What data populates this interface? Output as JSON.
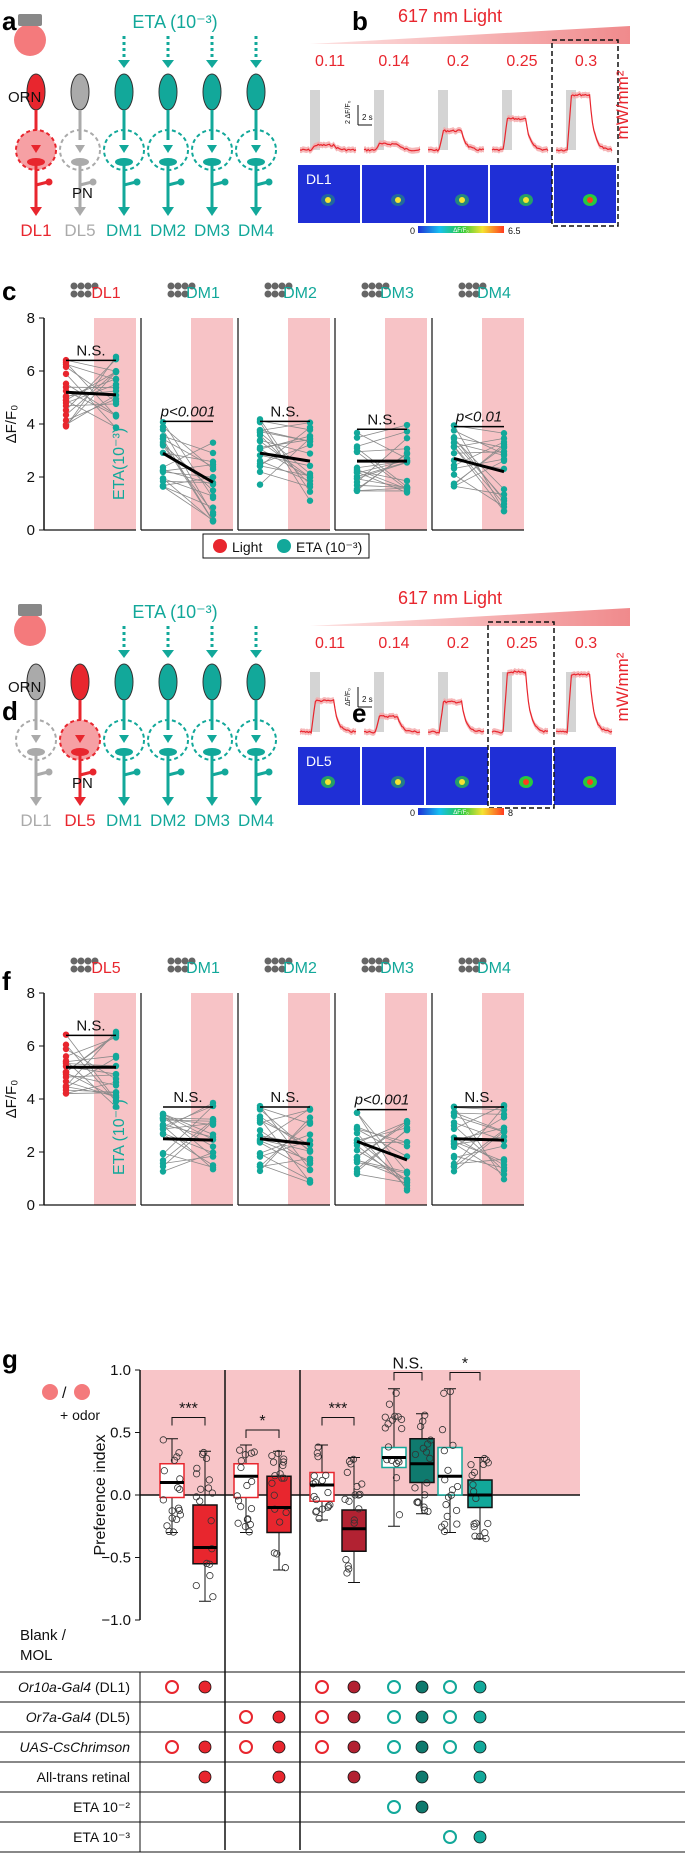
{
  "panels": {
    "a": {
      "label": "a",
      "eta": "ETA (10⁻³)",
      "orn": "ORN",
      "pn": "PN",
      "glomeruli": [
        "DL1",
        "DL5",
        "DM1",
        "DM2",
        "DM3",
        "DM4"
      ],
      "glom_colors": [
        "#e8262e",
        "#aaaaaa",
        "#12a89a",
        "#12a89a",
        "#12a89a",
        "#12a89a"
      ]
    },
    "b": {
      "label": "b",
      "light": "617 nm Light",
      "intensities": [
        "0.11",
        "0.14",
        "0.2",
        "0.25",
        "0.3"
      ],
      "unit": "mW/mm²",
      "scale": "2 ΔF/F₀",
      "time": "2 s",
      "image_label": "DL1",
      "cbar_min": "0",
      "cbar_mid": "ΔF/F₀",
      "cbar_max": "6.5",
      "peak_dff": [
        0.4,
        0.5,
        1.6,
        2.6,
        4.6
      ]
    },
    "c": {
      "label": "c",
      "ylabel": "ΔF/F₀",
      "ticks": [
        "0",
        "2",
        "4",
        "6",
        "8"
      ],
      "eta_label": "ETA(10⁻³)",
      "legend_light": "Light",
      "legend_eta": "ETA (10⁻³)",
      "subpanels": [
        {
          "glom": "DL1",
          "stat": "N.S.",
          "left_mean": 5.2,
          "right_mean": 5.1,
          "color": "#e8262e"
        },
        {
          "glom": "DM1",
          "stat": "p<0.001",
          "left_mean": 2.9,
          "right_mean": 1.8,
          "color": "#12a89a"
        },
        {
          "glom": "DM2",
          "stat": "N.S.",
          "left_mean": 2.9,
          "right_mean": 2.6,
          "color": "#12a89a"
        },
        {
          "glom": "DM3",
          "stat": "N.S.",
          "left_mean": 2.6,
          "right_mean": 2.6,
          "color": "#12a89a"
        },
        {
          "glom": "DM4",
          "stat": "p<0.01",
          "left_mean": 2.7,
          "right_mean": 2.2,
          "color": "#12a89a"
        }
      ]
    },
    "d": {
      "label": "d",
      "eta": "ETA (10⁻³)",
      "orn": "ORN",
      "pn": "PN",
      "glomeruli": [
        "DL1",
        "DL5",
        "DM1",
        "DM2",
        "DM3",
        "DM4"
      ],
      "glom_colors": [
        "#aaaaaa",
        "#e8262e",
        "#12a89a",
        "#12a89a",
        "#12a89a",
        "#12a89a"
      ]
    },
    "e": {
      "label": "e",
      "light": "617 nm Light",
      "intensities": [
        "0.11",
        "0.14",
        "0.2",
        "0.25",
        "0.3"
      ],
      "unit": "mW/mm²",
      "scale": "ΔF/F₀",
      "time": "2 s",
      "image_label": "DL5",
      "cbar_min": "0",
      "cbar_mid": "ΔF/F₀",
      "cbar_max": "8",
      "peak_dff": [
        2.6,
        1.3,
        2.5,
        5.0,
        4.8
      ]
    },
    "f": {
      "label": "f",
      "ylabel": "ΔF/F₀",
      "ticks": [
        "0",
        "2",
        "4",
        "6",
        "8"
      ],
      "eta_label": "ETA (10⁻³)",
      "subpanels": [
        {
          "glom": "DL5",
          "stat": "N.S.",
          "left_mean": 5.2,
          "right_mean": 5.2,
          "color": "#e8262e"
        },
        {
          "glom": "DM1",
          "stat": "N.S.",
          "left_mean": 2.5,
          "right_mean": 2.45,
          "color": "#12a89a"
        },
        {
          "glom": "DM2",
          "stat": "N.S.",
          "left_mean": 2.5,
          "right_mean": 2.3,
          "color": "#12a89a"
        },
        {
          "glom": "DM3",
          "stat": "p<0.001",
          "left_mean": 2.4,
          "right_mean": 1.7,
          "color": "#12a89a"
        },
        {
          "glom": "DM4",
          "stat": "N.S.",
          "left_mean": 2.5,
          "right_mean": 2.45,
          "color": "#12a89a"
        }
      ]
    },
    "g": {
      "label": "g",
      "ylabel": "Preference index",
      "ticks": [
        "1.0",
        "0.5",
        "0.0",
        "−0.5",
        "−1.0"
      ],
      "legend_slash": "/",
      "legend_odor": "+ odor",
      "stats": [
        "***",
        "*",
        "***",
        "N.S.",
        "*"
      ],
      "boxes": [
        {
          "median": 0.1,
          "q1": -0.02,
          "q3": 0.25,
          "lo": -0.3,
          "hi": 0.45,
          "fill": "#ffffff",
          "edge": "#e8262e"
        },
        {
          "median": -0.42,
          "q1": -0.55,
          "q3": -0.08,
          "lo": -0.85,
          "hi": 0.35,
          "fill": "#e8262e",
          "edge": "#111111"
        },
        {
          "median": 0.15,
          "q1": -0.02,
          "q3": 0.25,
          "lo": -0.3,
          "hi": 0.4,
          "fill": "#ffffff",
          "edge": "#e8262e"
        },
        {
          "median": -0.1,
          "q1": -0.3,
          "q3": 0.15,
          "lo": -0.6,
          "hi": 0.35,
          "fill": "#e8262e",
          "edge": "#111111"
        },
        {
          "median": 0.08,
          "q1": -0.05,
          "q3": 0.18,
          "lo": -0.2,
          "hi": 0.4,
          "fill": "#ffffff",
          "edge": "#e8262e"
        },
        {
          "median": -0.27,
          "q1": -0.45,
          "q3": -0.12,
          "lo": -0.7,
          "hi": 0.3,
          "fill": "#b22232",
          "edge": "#111111"
        },
        {
          "median": 0.3,
          "q1": 0.22,
          "q3": 0.38,
          "lo": -0.25,
          "hi": 0.85,
          "fill": "#ffffff",
          "edge": "#12a89a"
        },
        {
          "median": 0.25,
          "q1": 0.1,
          "q3": 0.45,
          "lo": -0.15,
          "hi": 0.65,
          "fill": "#0f7a6e",
          "edge": "#111111"
        },
        {
          "median": 0.15,
          "q1": 0.0,
          "q3": 0.38,
          "lo": -0.3,
          "hi": 0.85,
          "fill": "#ffffff",
          "edge": "#12a89a"
        },
        {
          "median": 0.0,
          "q1": -0.1,
          "q3": 0.12,
          "lo": -0.35,
          "hi": 0.3,
          "fill": "#12a89a",
          "edge": "#111111"
        }
      ],
      "row_header": "Blank /\nMOL",
      "rows": [
        {
          "label": "Or10a-Gal4 (DL1)",
          "italic": "Or10a-Gal4",
          "suffix": " (DL1)",
          "marks": [
            "o",
            "f",
            "",
            "",
            "o",
            "f",
            "o",
            "f",
            "o",
            "f"
          ]
        },
        {
          "label": "Or7a-Gal4 (DL5)",
          "italic": "Or7a-Gal4",
          "suffix": " (DL5)",
          "marks": [
            "",
            "",
            "o",
            "f",
            "o",
            "f",
            "o",
            "f",
            "o",
            "f"
          ]
        },
        {
          "label": "UAS-CsChrimson",
          "italic": "UAS-CsChrimson",
          "suffix": "",
          "marks": [
            "o",
            "f",
            "o",
            "f",
            "o",
            "f",
            "o",
            "f",
            "o",
            "f"
          ]
        },
        {
          "label": "All-trans retinal",
          "italic": "",
          "suffix": "All-trans retinal",
          "marks": [
            "",
            "f",
            "",
            "f",
            "",
            "f",
            "",
            "f",
            "",
            "f"
          ]
        },
        {
          "label": "ETA 10⁻²",
          "italic": "",
          "suffix": "ETA 10⁻²",
          "marks": [
            "",
            "",
            "",
            "",
            "",
            "",
            "o",
            "f",
            "",
            ""
          ]
        },
        {
          "label": "ETA 10⁻³",
          "italic": "",
          "suffix": "ETA 10⁻³",
          "marks": [
            "",
            "",
            "",
            "",
            "",
            "",
            "",
            "",
            "o",
            "f"
          ]
        }
      ]
    }
  }
}
